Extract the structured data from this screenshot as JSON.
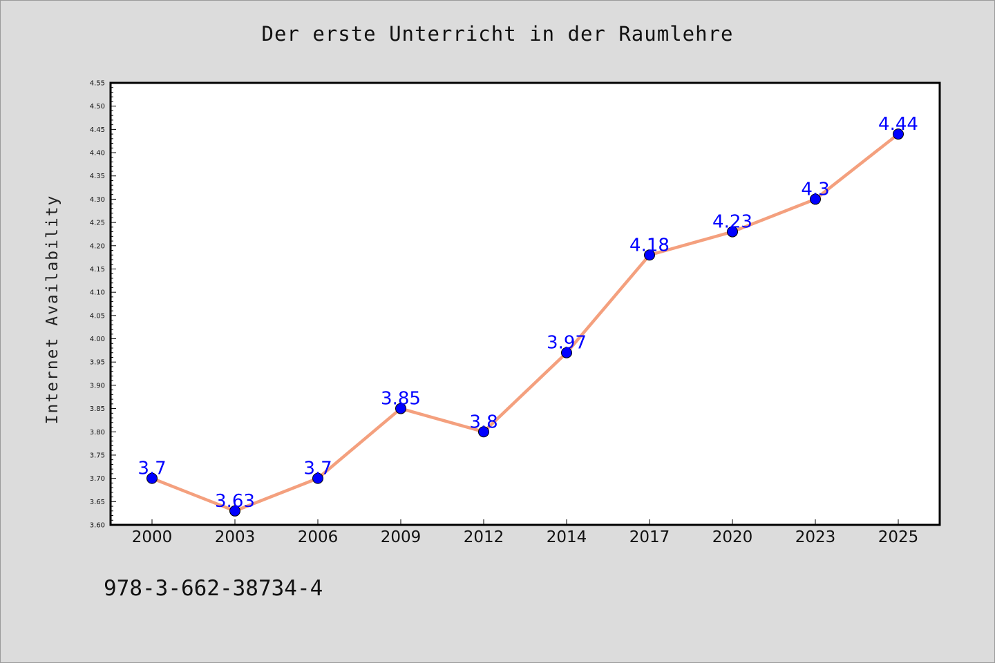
{
  "chart_data": {
    "type": "line",
    "title": "Der erste Unterricht in der Raumlehre",
    "xlabel": "",
    "ylabel": "Internet Availability",
    "categories": [
      "2000",
      "2003",
      "2006",
      "2009",
      "2012",
      "2014",
      "2017",
      "2020",
      "2023",
      "2025"
    ],
    "series": [
      {
        "values": [
          3.7,
          3.63,
          3.7,
          3.85,
          3.8,
          3.97,
          4.18,
          4.23,
          4.3,
          4.44
        ],
        "line_color": "#f4a07e",
        "marker_color": "#0000ff"
      }
    ],
    "data_labels": [
      "3.7",
      "3.63",
      "3.7",
      "3.85",
      "3.8",
      "3.97",
      "4.18",
      "4.23",
      "4.3",
      "4.44"
    ],
    "ylim": [
      3.6,
      4.55
    ],
    "yticks": [
      "3.60",
      "3.65",
      "3.70",
      "3.75",
      "3.80",
      "3.85",
      "3.90",
      "3.95",
      "4.00",
      "4.05",
      "4.10",
      "4.15",
      "4.20",
      "4.25",
      "4.30",
      "4.35",
      "4.40",
      "4.45",
      "4.50",
      "4.55"
    ],
    "grid": false,
    "legend": "none"
  },
  "footer": {
    "code": "978-3-662-38734-4"
  }
}
